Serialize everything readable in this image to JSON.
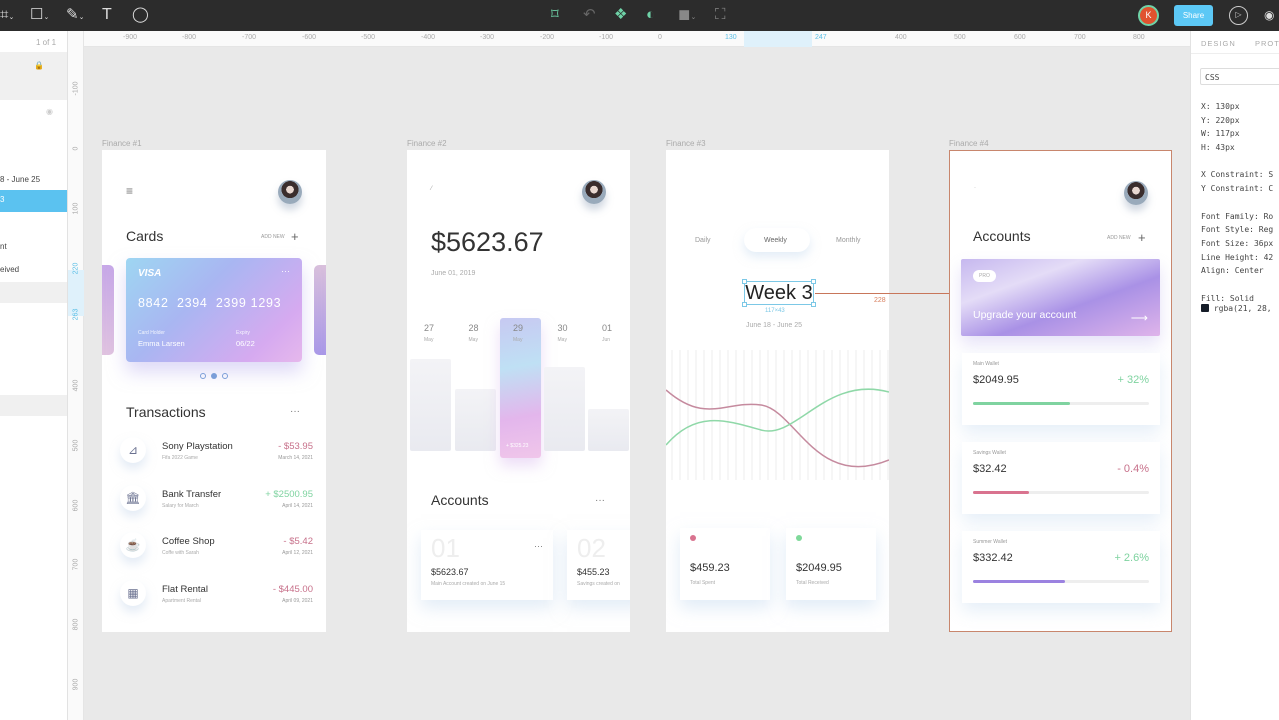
{
  "toolbar": {
    "share_label": "Share",
    "user_initial": "K",
    "colors": {
      "accent": "#5cc8f5",
      "bg": "#2c2c2c",
      "active_icon": "#6fd3a8",
      "user": "#e0532f"
    }
  },
  "layers": {
    "page_count": "1 of 1",
    "items": [
      "8 - June 25",
      "3",
      "nt",
      "eived"
    ]
  },
  "rulers": {
    "horizontal": [
      "-900",
      "-800",
      "-700",
      "-600",
      "-500",
      "-400",
      "-300",
      "-200",
      "-100",
      "0",
      "130",
      "247",
      "400",
      "500",
      "600",
      "700",
      "800"
    ],
    "vertical": [
      "-100",
      "0",
      "100",
      "220",
      "263",
      "400",
      "500",
      "600",
      "700",
      "800",
      "900"
    ]
  },
  "inspector": {
    "tabs": [
      "DESIGN",
      "PROT"
    ],
    "format": "CSS",
    "props": [
      "X: 130px",
      "Y: 220px",
      "W: 117px",
      "H: 43px",
      "",
      "X Constraint: S",
      "Y Constraint: C",
      "",
      "Font Family: Ro",
      "Font Style: Reg",
      "Font Size: 36px",
      "Line Height: 42",
      "Align: Center",
      "",
      "Fill: Solid"
    ],
    "fill_value": "rgba(21, 28,",
    "fill_color": "#151c28"
  },
  "f1": {
    "label": "Finance #1",
    "title": "Cards",
    "add_new": "ADD NEW",
    "card": {
      "brand": "VISA",
      "number": "8842  2394  2399 1293",
      "holder_label": "Card Holder",
      "holder": "Emma Larsen",
      "expiry_label": "Expiry",
      "expiry": "06/22",
      "active_page": 2,
      "pages": 3
    },
    "tx_title": "Transactions",
    "transactions": [
      {
        "name": "Sony Playstation",
        "sub": "Fifa 2022 Game",
        "amount": "- $53.95",
        "date": "March 14, 2021",
        "icon": "playstation-icon",
        "glyph": "⊿"
      },
      {
        "name": "Bank Transfer",
        "sub": "Salary for March",
        "amount": "+ $2500.95",
        "date": "April 14, 2021",
        "icon": "bank-icon",
        "glyph": "🏛"
      },
      {
        "name": "Coffee Shop",
        "sub": "Coffe with Sarah",
        "amount": "- $5.42",
        "date": "April 12, 2021",
        "icon": "coffee-icon",
        "glyph": "☕"
      },
      {
        "name": "Flat Rental",
        "sub": "Apartment Rental",
        "amount": "- $445.00",
        "date": "April 09, 2021",
        "icon": "building-icon",
        "glyph": "▦"
      }
    ]
  },
  "f2": {
    "label": "Finance #2",
    "balance": "$5623.67",
    "date": "June 01, 2019",
    "days": [
      {
        "d": "27",
        "m": "May"
      },
      {
        "d": "28",
        "m": "May"
      },
      {
        "d": "29",
        "m": "May"
      },
      {
        "d": "30",
        "m": "May"
      },
      {
        "d": "01",
        "m": "Jun"
      }
    ],
    "selected_value": "+ $325.23",
    "acc_title": "Accounts",
    "accounts": [
      {
        "num": "01",
        "amount": "$5623.67",
        "sub": "Main Account created on June 15"
      },
      {
        "num": "02",
        "amount": "$455.23",
        "sub": "Savings created on"
      }
    ]
  },
  "f3": {
    "label": "Finance #3",
    "tabs": [
      "Daily",
      "Weekly",
      "Monthly"
    ],
    "active_tab": "Weekly",
    "week": "Week 3",
    "range": "June 18 - June 25",
    "size_badge": "117×43",
    "distance": "228",
    "stats": [
      {
        "amount": "$459.23",
        "label": "Total Spent",
        "color": "#d9738f"
      },
      {
        "amount": "$2049.95",
        "label": "Total Received",
        "color": "#7fd99a"
      }
    ]
  },
  "f4": {
    "label": "Finance #4",
    "title": "Accounts",
    "add_new": "ADD NEW",
    "promo": {
      "badge": "PRO",
      "text": "Upgrade your account"
    },
    "wallets": [
      {
        "name": "Main Wallet",
        "amount": "$2049.95",
        "change": "+ 32%",
        "progress": 0.55,
        "color": "#7fd3a0",
        "dir": "pos"
      },
      {
        "name": "Savings Wallet",
        "amount": "$32.42",
        "change": "- 0.4%",
        "progress": 0.32,
        "color": "#d9738f",
        "dir": "neg"
      },
      {
        "name": "Summer Wallet",
        "amount": "$332.42",
        "change": "+ 2.6%",
        "progress": 0.52,
        "color": "#9b82e0",
        "dir": "pos"
      }
    ]
  }
}
